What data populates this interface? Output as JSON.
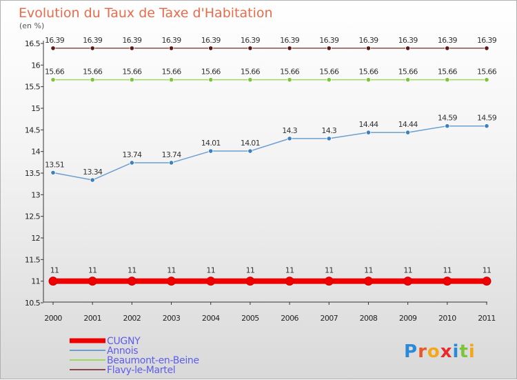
{
  "chart_data": {
    "type": "line",
    "title": "Evolution du Taux de Taxe d'Habitation",
    "ylabel": "(en %)",
    "xlabel": "",
    "categories": [
      "2000",
      "2001",
      "2002",
      "2003",
      "2004",
      "2005",
      "2006",
      "2007",
      "2008",
      "2009",
      "2010",
      "2011"
    ],
    "y_ticks": [
      "10.5",
      "11",
      "11.5",
      "12",
      "12.5",
      "13",
      "13.5",
      "14",
      "14.5",
      "15",
      "15.5",
      "16",
      "16.5"
    ],
    "ylim": [
      10.5,
      16.5
    ],
    "grid": false,
    "legend_position": "bottom-left",
    "series": [
      {
        "name": "CUGNY",
        "color": "#ee0000",
        "values": [
          11,
          11,
          11,
          11,
          11,
          11,
          11,
          11,
          11,
          11,
          11,
          11
        ],
        "labels": [
          "11",
          "11",
          "11",
          "11",
          "11",
          "11",
          "11",
          "11",
          "11",
          "11",
          "11",
          "11"
        ]
      },
      {
        "name": "Annois",
        "color": "#6a9fd0",
        "marker": "#3f7fc0",
        "values": [
          13.51,
          13.34,
          13.74,
          13.74,
          14.01,
          14.01,
          14.3,
          14.3,
          14.44,
          14.44,
          14.59,
          14.59
        ],
        "labels": [
          "13.51",
          "13.34",
          "13.74",
          "13.74",
          "14.01",
          "14.01",
          "14.3",
          "14.3",
          "14.44",
          "14.44",
          "14.59",
          "14.59"
        ]
      },
      {
        "name": "Beaumont-en-Beine",
        "color": "#9ad860",
        "marker": "#7cc43c",
        "values": [
          15.66,
          15.66,
          15.66,
          15.66,
          15.66,
          15.66,
          15.66,
          15.66,
          15.66,
          15.66,
          15.66,
          15.66
        ],
        "labels": [
          "15.66",
          "15.66",
          "15.66",
          "15.66",
          "15.66",
          "15.66",
          "15.66",
          "15.66",
          "15.66",
          "15.66",
          "15.66",
          "15.66"
        ]
      },
      {
        "name": "Flavy-le-Martel",
        "color": "#8a4a4a",
        "marker": "#5a1a1a",
        "values": [
          16.39,
          16.39,
          16.39,
          16.39,
          16.39,
          16.39,
          16.39,
          16.39,
          16.39,
          16.39,
          16.39,
          16.39
        ],
        "labels": [
          "16.39",
          "16.39",
          "16.39",
          "16.39",
          "16.39",
          "16.39",
          "16.39",
          "16.39",
          "16.39",
          "16.39",
          "16.39",
          "16.39"
        ]
      }
    ]
  },
  "logo": {
    "text": "Proxiti",
    "letters": [
      "P",
      "r",
      "o",
      "x",
      "i",
      "t",
      "i"
    ]
  }
}
